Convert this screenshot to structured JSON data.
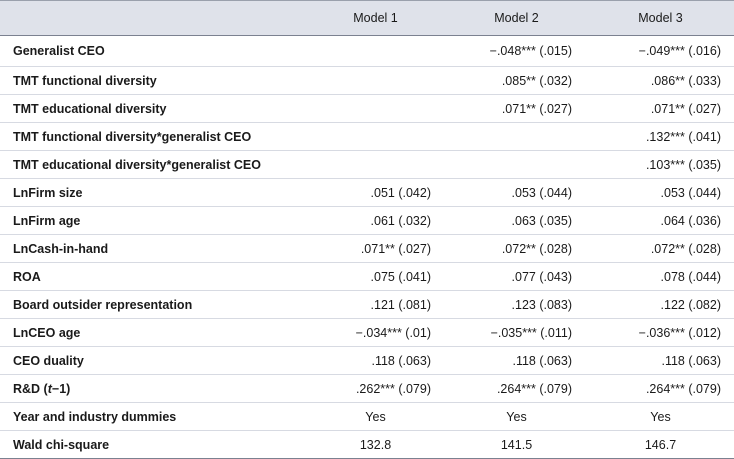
{
  "table": {
    "headers": [
      "",
      "Model 1",
      "Model 2",
      "Model 3"
    ],
    "rows": [
      {
        "label": "Generalist CEO",
        "m1": "",
        "m2": "−.048*** (.015)",
        "m3": "−.049*** (.016)"
      },
      {
        "label": "TMT functional diversity",
        "m1": "",
        "m2": ".085** (.032)",
        "m3": ".086** (.033)"
      },
      {
        "label": "TMT educational diversity",
        "m1": "",
        "m2": ".071** (.027)",
        "m3": ".071** (.027)"
      },
      {
        "label": "TMT functional diversity*generalist CEO",
        "m1": "",
        "m2": "",
        "m3": ".132*** (.041)"
      },
      {
        "label": "TMT educational diversity*generalist CEO",
        "m1": "",
        "m2": "",
        "m3": ".103*** (.035)"
      },
      {
        "label": "LnFirm size",
        "m1": ".051 (.042)",
        "m2": ".053 (.044)",
        "m3": ".053 (.044)"
      },
      {
        "label": "LnFirm age",
        "m1": ".061 (.032)",
        "m2": ".063 (.035)",
        "m3": ".064 (.036)"
      },
      {
        "label": "LnCash-in-hand",
        "m1": ".071** (.027)",
        "m2": ".072** (.028)",
        "m3": ".072** (.028)"
      },
      {
        "label": "ROA",
        "m1": ".075 (.041)",
        "m2": ".077 (.043)",
        "m3": ".078 (.044)"
      },
      {
        "label": "Board outsider representation",
        "m1": ".121 (.081)",
        "m2": ".123 (.083)",
        "m3": ".122 (.082)"
      },
      {
        "label": "LnCEO age",
        "m1": "−.034*** (.01)",
        "m2": "−.035*** (.011)",
        "m3": "−.036*** (.012)"
      },
      {
        "label": "CEO duality",
        "m1": ".118 (.063)",
        "m2": ".118 (.063)",
        "m3": ".118 (.063)"
      },
      {
        "label_prefix": "R&D (",
        "label_italic": "t",
        "label_suffix": "−1)",
        "m1": ".262*** (.079)",
        "m2": ".264*** (.079)",
        "m3": ".264*** (.079)"
      },
      {
        "label": "Year and industry dummies",
        "m1": "Yes",
        "m2": "Yes",
        "m3": "Yes"
      },
      {
        "label": "Wald chi-square",
        "m1": "132.8",
        "m2": "141.5",
        "m3": "146.7"
      }
    ]
  }
}
